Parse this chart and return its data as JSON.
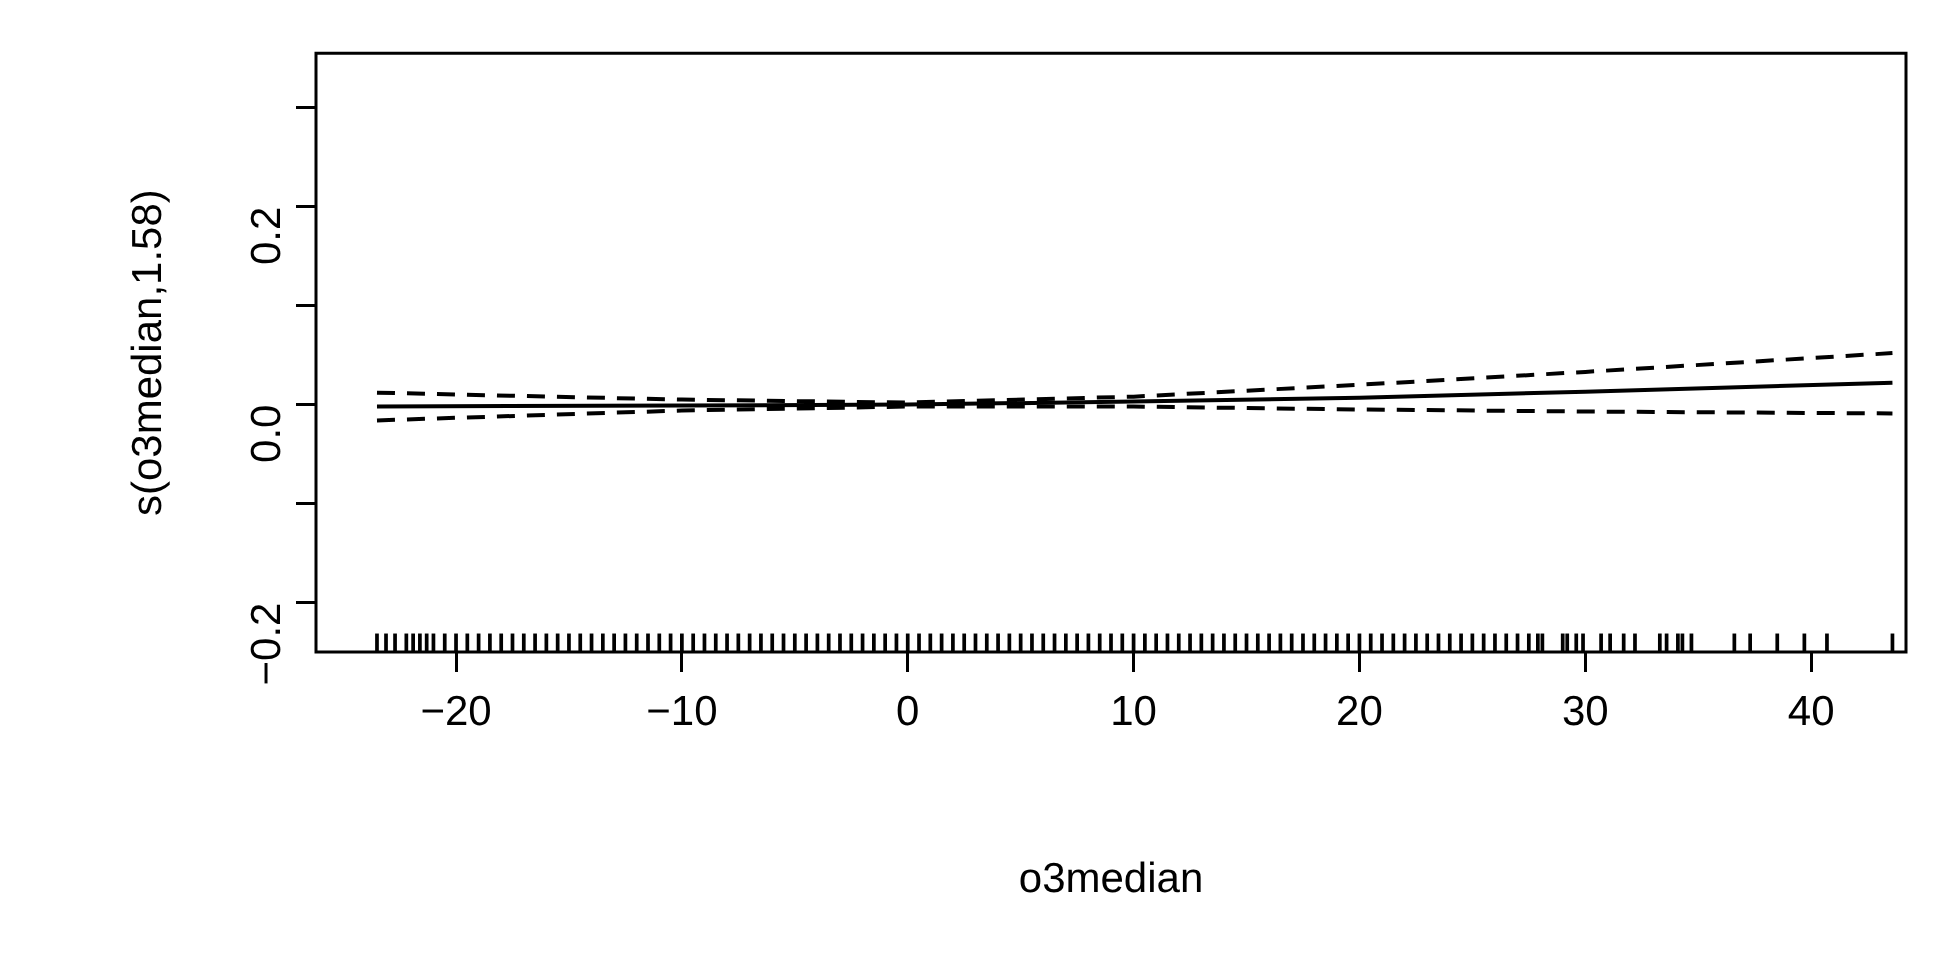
{
  "chart_data": {
    "type": "line",
    "xlabel": "o3median",
    "ylabel": "s(o3median,1.58)",
    "xlim": [
      -26.2,
      44.2
    ],
    "ylim": [
      -0.25,
      0.355
    ],
    "xticks": [
      -20,
      -10,
      0,
      10,
      20,
      30,
      40
    ],
    "yticks": [
      {
        "value": -0.2,
        "label": "−0.2"
      },
      {
        "value": -0.1,
        "label": null
      },
      {
        "value": 0,
        "label": "0.0"
      },
      {
        "value": 0.1,
        "label": null
      },
      {
        "value": 0.2,
        "label": "0.2"
      },
      {
        "value": 0.3,
        "label": null
      }
    ],
    "grid": false,
    "series": [
      {
        "color": "#000000",
        "line_style": "solid",
        "marker": "none",
        "x": [
          -23.5,
          -10,
          0,
          10,
          20,
          30,
          43.6
        ],
        "values": [
          -0.002,
          -0.001,
          0,
          0.003,
          0.007,
          0.013,
          0.022
        ]
      },
      {
        "color": "#000000",
        "line_style": "dashed",
        "marker": "none",
        "x": [
          -23.5,
          -10,
          0,
          10,
          20,
          30,
          43.6
        ],
        "values": [
          0.012,
          0.005,
          0.002,
          0.008,
          0.02,
          0.033,
          0.052
        ]
      },
      {
        "color": "#000000",
        "line_style": "dashed",
        "marker": "none",
        "x": [
          -23.5,
          -10,
          0,
          10,
          20,
          30,
          43.6
        ],
        "values": [
          -0.016,
          -0.006,
          -0.002,
          -0.002,
          -0.005,
          -0.007,
          -0.009
        ]
      },
      {
        "type": "bar",
        "color": "#000000",
        "base": [
          -0.25,
          -0.25,
          -0.25,
          -0.25,
          -0.25,
          -0.25,
          -0.25,
          -0.25,
          -0.25,
          -0.25,
          -0.25,
          -0.25,
          -0.25,
          -0.25,
          -0.25,
          -0.25,
          -0.25,
          -0.25,
          -0.25,
          -0.25,
          -0.25,
          -0.25,
          -0.25,
          -0.25,
          -0.25,
          -0.25,
          -0.25,
          -0.25,
          -0.25,
          -0.25,
          -0.25,
          -0.25,
          -0.25,
          -0.25,
          -0.25,
          -0.25,
          -0.25,
          -0.25,
          -0.25,
          -0.25,
          -0.25,
          -0.25,
          -0.25,
          -0.25,
          -0.25,
          -0.25,
          -0.25,
          -0.25,
          -0.25,
          -0.25,
          -0.25,
          -0.25,
          -0.25,
          -0.25,
          -0.25,
          -0.25,
          -0.25,
          -0.25,
          -0.25,
          -0.25,
          -0.25,
          -0.25,
          -0.25,
          -0.25,
          -0.25,
          -0.25,
          -0.25,
          -0.25,
          -0.25,
          -0.25,
          -0.25,
          -0.25,
          -0.25,
          -0.25,
          -0.25,
          -0.25,
          -0.25,
          -0.25,
          -0.25,
          -0.25,
          -0.25,
          -0.25,
          -0.25,
          -0.25,
          -0.25,
          -0.25,
          -0.25,
          -0.25,
          -0.25,
          -0.25,
          -0.25,
          -0.25,
          -0.25,
          -0.25,
          -0.25,
          -0.25,
          -0.25,
          -0.25,
          -0.25,
          -0.25,
          -0.25,
          -0.25,
          -0.25,
          -0.25,
          -0.25,
          -0.25,
          -0.25,
          -0.25,
          -0.25,
          -0.25,
          -0.25,
          -0.25,
          -0.25,
          -0.25,
          -0.25,
          -0.25,
          -0.25,
          -0.25,
          -0.25,
          -0.25,
          -0.25,
          -0.25,
          -0.25,
          -0.25,
          -0.25,
          -0.25
        ],
        "x": [
          -23.5,
          -23.1,
          -22.7,
          -22.2,
          -21.9,
          -21.6,
          -21.3,
          -21,
          -20.5,
          -20,
          -19.5,
          -19,
          -18.5,
          -18,
          -17.5,
          -17,
          -16.5,
          -16,
          -15.5,
          -15,
          -14.5,
          -14,
          -13.5,
          -13,
          -12.5,
          -12,
          -11.5,
          -11,
          -10.5,
          -10,
          -9.5,
          -9,
          -8.5,
          -8,
          -7.5,
          -7,
          -6.5,
          -6,
          -5.5,
          -5,
          -4.5,
          -4,
          -3.5,
          -3,
          -2.5,
          -2,
          -1.5,
          -1,
          -0.5,
          0,
          0.5,
          1,
          1.5,
          2,
          2.5,
          3,
          3.5,
          4,
          4.5,
          5,
          5.5,
          6,
          6.5,
          7,
          7.5,
          8,
          8.5,
          9,
          9.5,
          10,
          10.5,
          11,
          11.5,
          12,
          12.5,
          13,
          13.5,
          14,
          14.5,
          15,
          15.5,
          16,
          16.5,
          17,
          17.5,
          18,
          18.5,
          19,
          19.5,
          20,
          20.5,
          21,
          21.5,
          22,
          22.5,
          23,
          23.5,
          24,
          24.5,
          25,
          25.5,
          26,
          26.5,
          27,
          27.5,
          27.9,
          28.1,
          29,
          29.2,
          29.6,
          29.9,
          30.7,
          31.1,
          31.7,
          32.2,
          33.3,
          33.6,
          34.1,
          34.3,
          34.7,
          36.6,
          37.3,
          38.5,
          39.7,
          40.7,
          43.6
        ],
        "values": [
          0.018,
          0.018,
          0.018,
          0.018,
          0.018,
          0.018,
          0.018,
          0.018,
          0.018,
          0.018,
          0.018,
          0.018,
          0.018,
          0.018,
          0.018,
          0.018,
          0.018,
          0.018,
          0.018,
          0.018,
          0.018,
          0.018,
          0.018,
          0.018,
          0.018,
          0.018,
          0.018,
          0.018,
          0.018,
          0.018,
          0.018,
          0.018,
          0.018,
          0.018,
          0.018,
          0.018,
          0.018,
          0.018,
          0.018,
          0.018,
          0.018,
          0.018,
          0.018,
          0.018,
          0.018,
          0.018,
          0.018,
          0.018,
          0.018,
          0.018,
          0.018,
          0.018,
          0.018,
          0.018,
          0.018,
          0.018,
          0.018,
          0.018,
          0.018,
          0.018,
          0.018,
          0.018,
          0.018,
          0.018,
          0.018,
          0.018,
          0.018,
          0.018,
          0.018,
          0.018,
          0.018,
          0.018,
          0.018,
          0.018,
          0.018,
          0.018,
          0.018,
          0.018,
          0.018,
          0.018,
          0.018,
          0.018,
          0.018,
          0.018,
          0.018,
          0.018,
          0.018,
          0.018,
          0.018,
          0.018,
          0.018,
          0.018,
          0.018,
          0.018,
          0.018,
          0.018,
          0.018,
          0.018,
          0.018,
          0.018,
          0.018,
          0.018,
          0.018,
          0.018,
          0.018,
          0.018,
          0.018,
          0.018,
          0.018,
          0.018,
          0.018,
          0.018,
          0.018,
          0.018,
          0.018,
          0.018,
          0.018,
          0.018,
          0.018,
          0.018,
          0.018,
          0.018,
          0.018,
          0.018,
          0.018,
          0.018
        ]
      }
    ]
  }
}
